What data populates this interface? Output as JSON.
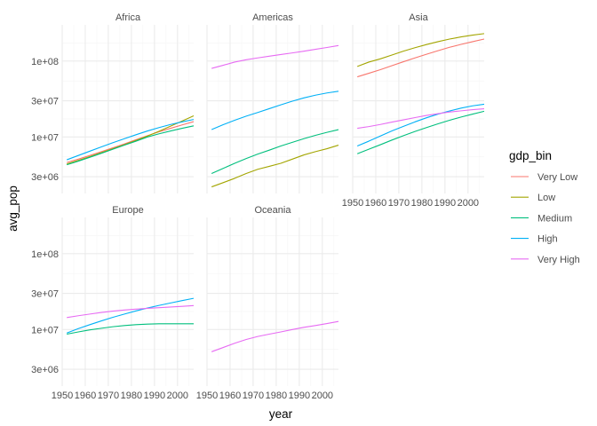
{
  "chart_data": {
    "type": "line",
    "facet_by": "continent",
    "panels": [
      "Africa",
      "Americas",
      "Asia",
      "Europe",
      "Oceania"
    ],
    "xlabel": "year",
    "ylabel": "avg_pop",
    "y_scale": "log10",
    "xlim": [
      1950,
      2007
    ],
    "ylim": [
      1800000,
      300000000
    ],
    "x_ticks": [
      1950,
      1960,
      1970,
      1980,
      1990,
      2000
    ],
    "x_tick_labels": [
      "1950",
      "1960",
      "1970",
      "1980",
      "1990",
      "2000"
    ],
    "y_ticks": [
      3000000,
      10000000,
      30000000,
      100000000
    ],
    "y_tick_labels": [
      "3e+06",
      "1e+07",
      "3e+07",
      "1e+08"
    ],
    "grid": true,
    "theme": "minimal",
    "legend": {
      "title": "gdp_bin",
      "position": "right",
      "entries": [
        {
          "name": "Very Low",
          "color": "#F8766D"
        },
        {
          "name": "Low",
          "color": "#A3A500"
        },
        {
          "name": "Medium",
          "color": "#00BF7D"
        },
        {
          "name": "High",
          "color": "#00B0F6"
        },
        {
          "name": "Very High",
          "color": "#E76BF3"
        }
      ]
    },
    "x": [
      1952,
      1957,
      1962,
      1967,
      1972,
      1977,
      1982,
      1987,
      1992,
      1997,
      2002,
      2007
    ],
    "facets": [
      {
        "name": "Africa",
        "series": [
          {
            "name": "Very Low",
            "values": [
              4600000,
              5100000,
              5700000,
              6400000,
              7200000,
              8100000,
              9200000,
              10400000,
              11700000,
              13000000,
              14400000,
              15900000
            ]
          },
          {
            "name": "Low",
            "values": [
              4400000,
              4900000,
              5500000,
              6200000,
              7000000,
              7900000,
              9000000,
              10300000,
              11900000,
              13900000,
              16200000,
              19000000
            ]
          },
          {
            "name": "Medium",
            "values": [
              4300000,
              4800000,
              5400000,
              6100000,
              6900000,
              7800000,
              8800000,
              10000000,
              11000000,
              12000000,
              13000000,
              14000000
            ]
          },
          {
            "name": "High",
            "values": [
              5000000,
              5700000,
              6500000,
              7400000,
              8400000,
              9500000,
              10700000,
              12000000,
              13300000,
              14600000,
              15800000,
              17000000
            ]
          }
        ]
      },
      {
        "name": "Americas",
        "series": [
          {
            "name": "Low",
            "values": [
              2200000,
              2500000,
              2850000,
              3300000,
              3750000,
              4100000,
              4500000,
              5100000,
              5800000,
              6400000,
              7000000,
              7800000
            ]
          },
          {
            "name": "Medium",
            "values": [
              3300000,
              3850000,
              4500000,
              5200000,
              5950000,
              6700000,
              7600000,
              8500000,
              9500000,
              10500000,
              11500000,
              12500000
            ]
          },
          {
            "name": "High",
            "values": [
              12500000,
              14500000,
              16600000,
              18800000,
              21000000,
              23600000,
              26500000,
              29600000,
              32700000,
              35500000,
              38000000,
              40000000
            ]
          },
          {
            "name": "Very High",
            "values": [
              80000000,
              88000000,
              97000000,
              104000000,
              110000000,
              116000000,
              122000000,
              128000000,
              135000000,
              143000000,
              151000000,
              160000000
            ]
          }
        ]
      },
      {
        "name": "Asia",
        "series": [
          {
            "name": "Very Low",
            "values": [
              62000000,
              69000000,
              77000000,
              87000000,
              98000000,
              110000000,
              123000000,
              137000000,
              152000000,
              166000000,
              180000000,
              195000000
            ]
          },
          {
            "name": "Low",
            "values": [
              85000000,
              97000000,
              107000000,
              120000000,
              135000000,
              150000000,
              165000000,
              180000000,
              195000000,
              208000000,
              220000000,
              230000000
            ]
          },
          {
            "name": "Medium",
            "values": [
              6000000,
              6900000,
              7900000,
              9100000,
              10400000,
              11800000,
              13300000,
              14900000,
              16600000,
              18300000,
              20000000,
              21800000
            ]
          },
          {
            "name": "High",
            "values": [
              7600000,
              8800000,
              10300000,
              12000000,
              13800000,
              15800000,
              17900000,
              20000000,
              22000000,
              24000000,
              25700000,
              27000000
            ]
          },
          {
            "name": "Very High",
            "values": [
              13000000,
              13700000,
              14600000,
              15700000,
              16800000,
              18000000,
              19200000,
              20300000,
              21300000,
              22100000,
              22900000,
              23500000
            ]
          }
        ]
      },
      {
        "name": "Europe",
        "series": [
          {
            "name": "Medium",
            "values": [
              8700000,
              9300000,
              9900000,
              10400000,
              10900000,
              11300000,
              11600000,
              11800000,
              11900000,
              11900000,
              11900000,
              11900000
            ]
          },
          {
            "name": "High",
            "values": [
              9000000,
              10300000,
              11600000,
              13000000,
              14500000,
              16000000,
              17600000,
              19200000,
              20800000,
              22400000,
              24100000,
              25800000
            ]
          },
          {
            "name": "Very High",
            "values": [
              14400000,
              15200000,
              16000000,
              16800000,
              17500000,
              18100000,
              18600000,
              19000000,
              19400000,
              19800000,
              20200000,
              20700000
            ]
          }
        ]
      },
      {
        "name": "Oceania",
        "series": [
          {
            "name": "Very High",
            "values": [
              5100000,
              5800000,
              6600000,
              7400000,
              8100000,
              8700000,
              9300000,
              10000000,
              10700000,
              11300000,
              12000000,
              12800000
            ]
          }
        ]
      }
    ]
  }
}
